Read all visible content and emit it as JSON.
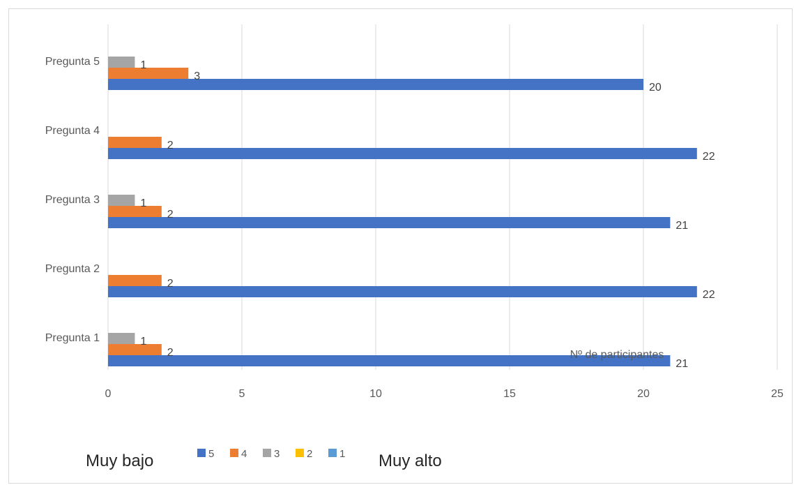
{
  "chart_data": {
    "type": "bar",
    "orientation": "horizontal",
    "categories": [
      "Pregunta 1",
      "Pregunta 2",
      "Pregunta 3",
      "Pregunta 4",
      "Pregunta 5"
    ],
    "series": [
      {
        "name": "5",
        "color": "#4472C4",
        "values": [
          21,
          22,
          21,
          22,
          20
        ]
      },
      {
        "name": "4",
        "color": "#ED7D31",
        "values": [
          2,
          2,
          2,
          2,
          3
        ]
      },
      {
        "name": "3",
        "color": "#A5A5A5",
        "values": [
          1,
          0,
          1,
          0,
          1
        ]
      },
      {
        "name": "2",
        "color": "#FFC000",
        "values": [
          0,
          0,
          0,
          0,
          0
        ]
      },
      {
        "name": "1",
        "color": "#5B9BD5",
        "values": [
          0,
          0,
          0,
          0,
          0
        ]
      }
    ],
    "xlim": [
      0,
      25
    ],
    "xticks": [
      0,
      5,
      10,
      15,
      20,
      25
    ],
    "xlabel": "Nº de participantes",
    "grid": true,
    "legend_position": "bottom",
    "legend_left_text": "Muy bajo",
    "legend_right_text": "Muy alto"
  }
}
